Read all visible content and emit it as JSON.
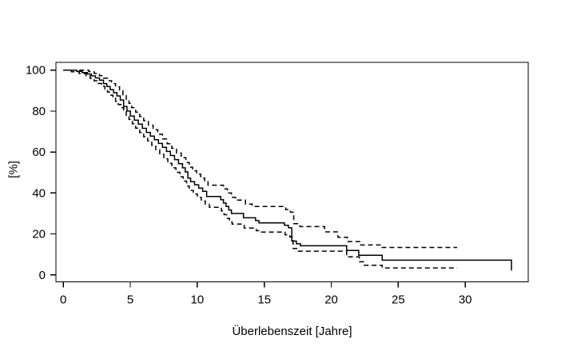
{
  "figure": {
    "background": "#ffffff",
    "line_color": "#000000"
  },
  "chart_data": {
    "type": "line",
    "subtype": "kaplan_meier_step",
    "title": "",
    "xlabel": "Überlebenszeit [Jahre]",
    "ylabel": "[%]",
    "xlim": [
      -0.55,
      34.7
    ],
    "ylim": [
      -3.4,
      103.8
    ],
    "x_ticks": [
      0,
      5,
      10,
      15,
      20,
      25,
      30
    ],
    "y_ticks": [
      0,
      20,
      40,
      60,
      80,
      100
    ],
    "grid": false,
    "legend_position": "none",
    "series": [
      {
        "name": "survival-estimate",
        "style": "solid",
        "points": [
          [
            0,
            100
          ],
          [
            1.0,
            99.4
          ],
          [
            1.4,
            98.8
          ],
          [
            1.8,
            98.1
          ],
          [
            2.1,
            97.2
          ],
          [
            2.4,
            96.2
          ],
          [
            2.7,
            95.1
          ],
          [
            3.0,
            93.4
          ],
          [
            3.25,
            92.0
          ],
          [
            3.5,
            90.5
          ],
          [
            3.75,
            89.0
          ],
          [
            4.0,
            87.4
          ],
          [
            4.25,
            85.4
          ],
          [
            4.5,
            82.2
          ],
          [
            4.75,
            80.0
          ],
          [
            5.0,
            77.6
          ],
          [
            5.3,
            75.6
          ],
          [
            5.6,
            73.6
          ],
          [
            5.9,
            71.6
          ],
          [
            6.2,
            69.6
          ],
          [
            6.5,
            67.8
          ],
          [
            6.8,
            66.0
          ],
          [
            7.1,
            64.2
          ],
          [
            7.4,
            62.3
          ],
          [
            7.7,
            60.3
          ],
          [
            8.0,
            58.3
          ],
          [
            8.3,
            56.3
          ],
          [
            8.6,
            54.3
          ],
          [
            8.9,
            52.3
          ],
          [
            9.1,
            50.3
          ],
          [
            9.3,
            47.3
          ],
          [
            9.5,
            45.5
          ],
          [
            9.8,
            44.0
          ],
          [
            10.1,
            42.4
          ],
          [
            10.4,
            40.8
          ],
          [
            10.7,
            38.3
          ],
          [
            11.75,
            36.7
          ],
          [
            11.95,
            35.1
          ],
          [
            12.15,
            33.4
          ],
          [
            12.35,
            31.7
          ],
          [
            12.55,
            30.0
          ],
          [
            13.45,
            27.9
          ],
          [
            14.35,
            26.5
          ],
          [
            14.6,
            25.4
          ],
          [
            16.5,
            24.2
          ],
          [
            16.8,
            23.0
          ],
          [
            17.05,
            16.5
          ],
          [
            17.4,
            15.2
          ],
          [
            17.7,
            14.2
          ],
          [
            21.15,
            11.9
          ],
          [
            22.05,
            9.6
          ],
          [
            23.8,
            7.2
          ],
          [
            33.4,
            7.2
          ],
          [
            33.45,
            2.2
          ]
        ]
      },
      {
        "name": "upper-confidence-band",
        "style": "dashed",
        "points": [
          [
            0,
            100
          ],
          [
            1.9,
            99.3
          ],
          [
            2.3,
            98.4
          ],
          [
            2.7,
            97.3
          ],
          [
            3.0,
            96.1
          ],
          [
            3.3,
            94.8
          ],
          [
            3.6,
            93.4
          ],
          [
            3.9,
            91.9
          ],
          [
            4.2,
            90.0
          ],
          [
            4.45,
            88.0
          ],
          [
            4.7,
            85.8
          ],
          [
            4.9,
            83.8
          ],
          [
            5.1,
            81.7
          ],
          [
            5.4,
            79.5
          ],
          [
            5.7,
            77.4
          ],
          [
            6.0,
            75.3
          ],
          [
            6.35,
            73.1
          ],
          [
            6.7,
            70.9
          ],
          [
            7.05,
            68.7
          ],
          [
            7.4,
            66.4
          ],
          [
            7.75,
            64.1
          ],
          [
            8.1,
            61.8
          ],
          [
            8.45,
            59.5
          ],
          [
            8.8,
            57.2
          ],
          [
            9.15,
            54.9
          ],
          [
            9.4,
            52.6
          ],
          [
            9.65,
            50.9
          ],
          [
            9.95,
            49.2
          ],
          [
            10.25,
            47.3
          ],
          [
            10.55,
            45.5
          ],
          [
            10.8,
            43.8
          ],
          [
            11.95,
            42.0
          ],
          [
            12.25,
            40.0
          ],
          [
            12.55,
            37.9
          ],
          [
            12.85,
            36.5
          ],
          [
            13.6,
            34.6
          ],
          [
            14.1,
            33.4
          ],
          [
            16.6,
            31.9
          ],
          [
            16.95,
            30.6
          ],
          [
            17.2,
            25.0
          ],
          [
            17.65,
            23.6
          ],
          [
            19.5,
            21.0
          ],
          [
            20.5,
            18.4
          ],
          [
            21.2,
            16.3
          ],
          [
            22.2,
            14.6
          ],
          [
            23.8,
            13.4
          ],
          [
            29.4,
            13.4
          ]
        ]
      },
      {
        "name": "lower-confidence-band",
        "style": "dashed",
        "points": [
          [
            0,
            100
          ],
          [
            0.6,
            99.2
          ],
          [
            1.2,
            98.3
          ],
          [
            1.7,
            97.2
          ],
          [
            2.0,
            96.0
          ],
          [
            2.3,
            94.8
          ],
          [
            2.6,
            93.5
          ],
          [
            2.85,
            92.1
          ],
          [
            3.1,
            90.7
          ],
          [
            3.3,
            89.3
          ],
          [
            3.5,
            87.8
          ],
          [
            3.7,
            86.3
          ],
          [
            3.9,
            84.8
          ],
          [
            4.1,
            83.2
          ],
          [
            4.3,
            81.6
          ],
          [
            4.5,
            79.9
          ],
          [
            4.7,
            77.9
          ],
          [
            4.9,
            75.9
          ],
          [
            5.15,
            73.8
          ],
          [
            5.4,
            71.7
          ],
          [
            5.7,
            69.6
          ],
          [
            6.0,
            67.5
          ],
          [
            6.3,
            65.4
          ],
          [
            6.6,
            63.3
          ],
          [
            6.9,
            61.1
          ],
          [
            7.2,
            58.9
          ],
          [
            7.5,
            56.7
          ],
          [
            7.8,
            54.5
          ],
          [
            8.1,
            52.3
          ],
          [
            8.4,
            50.1
          ],
          [
            8.7,
            47.9
          ],
          [
            8.95,
            45.8
          ],
          [
            9.2,
            43.4
          ],
          [
            9.4,
            41.2
          ],
          [
            9.7,
            39.5
          ],
          [
            10.0,
            37.8
          ],
          [
            10.3,
            36.1
          ],
          [
            10.6,
            34.5
          ],
          [
            10.9,
            33.0
          ],
          [
            11.8,
            31.2
          ],
          [
            12.0,
            29.4
          ],
          [
            12.2,
            27.6
          ],
          [
            12.4,
            25.8
          ],
          [
            12.6,
            24.8
          ],
          [
            13.5,
            22.9
          ],
          [
            14.4,
            21.6
          ],
          [
            14.65,
            20.9
          ],
          [
            16.55,
            19.6
          ],
          [
            16.9,
            18.5
          ],
          [
            17.15,
            12.9
          ],
          [
            17.5,
            11.6
          ],
          [
            21.15,
            8.8
          ],
          [
            22.1,
            6.4
          ],
          [
            22.4,
            4.7
          ],
          [
            23.8,
            3.4
          ],
          [
            29.4,
            3.4
          ]
        ]
      }
    ]
  }
}
